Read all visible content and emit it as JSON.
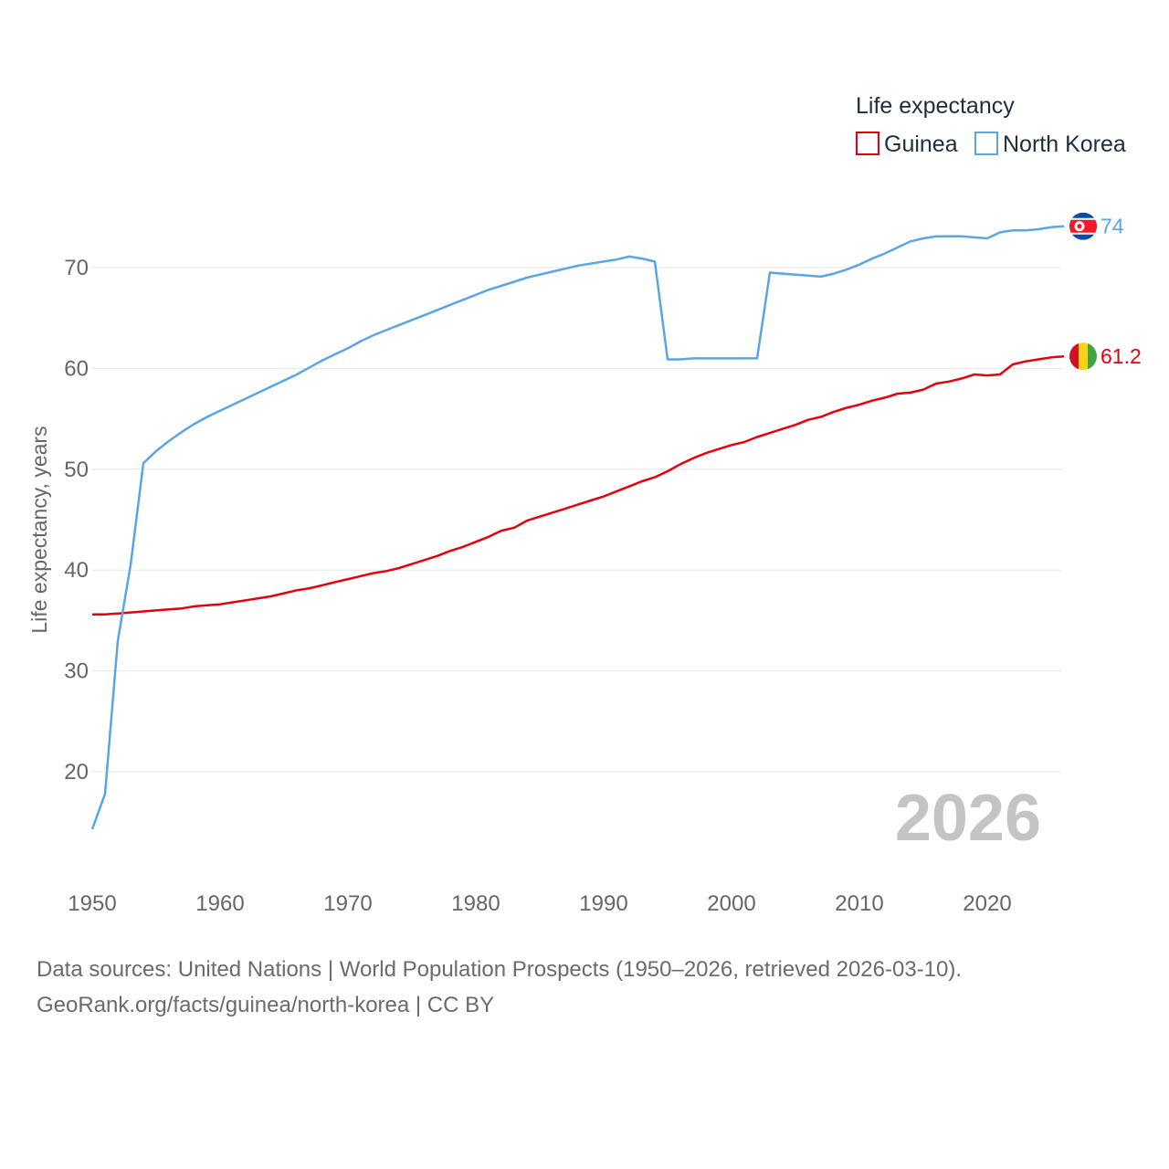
{
  "legend": {
    "title": "Life expectancy",
    "items": [
      {
        "label": "Guinea",
        "color": "#e3000f"
      },
      {
        "label": "North Korea",
        "color": "#5aa5e6"
      }
    ]
  },
  "year_stamp": "2026",
  "source": {
    "line1": "Data sources: United Nations | World Population Prospects (1950–2026, retrieved 2026-03-10).",
    "line2": "GeoRank.org/facts/guinea/north-korea | CC BY"
  },
  "chart_data": {
    "type": "line",
    "title": "Life expectancy",
    "xlabel": "",
    "ylabel": "Life expectancy, years",
    "xlim": [
      1950,
      2026
    ],
    "ylim": [
      12,
      76
    ],
    "xticks": [
      1950,
      1960,
      1970,
      1980,
      1990,
      2000,
      2010,
      2020
    ],
    "yticks": [
      20,
      30,
      40,
      50,
      60,
      70
    ],
    "grid": true,
    "legend_position": "top-right",
    "series": [
      {
        "name": "Guinea",
        "color": "#e3000f",
        "end_label": "61.2",
        "flag": "guinea",
        "points": [
          [
            1950,
            35.6
          ],
          [
            1951,
            35.6
          ],
          [
            1952,
            35.7
          ],
          [
            1953,
            35.8
          ],
          [
            1954,
            35.9
          ],
          [
            1955,
            36.0
          ],
          [
            1956,
            36.1
          ],
          [
            1957,
            36.2
          ],
          [
            1958,
            36.4
          ],
          [
            1959,
            36.5
          ],
          [
            1960,
            36.6
          ],
          [
            1961,
            36.8
          ],
          [
            1962,
            37.0
          ],
          [
            1963,
            37.2
          ],
          [
            1964,
            37.4
          ],
          [
            1965,
            37.7
          ],
          [
            1966,
            38.0
          ],
          [
            1967,
            38.2
          ],
          [
            1968,
            38.5
          ],
          [
            1969,
            38.8
          ],
          [
            1970,
            39.1
          ],
          [
            1971,
            39.4
          ],
          [
            1972,
            39.7
          ],
          [
            1973,
            39.9
          ],
          [
            1974,
            40.2
          ],
          [
            1975,
            40.6
          ],
          [
            1976,
            41.0
          ],
          [
            1977,
            41.4
          ],
          [
            1978,
            41.9
          ],
          [
            1979,
            42.3
          ],
          [
            1980,
            42.8
          ],
          [
            1981,
            43.3
          ],
          [
            1982,
            43.9
          ],
          [
            1983,
            44.2
          ],
          [
            1984,
            44.9
          ],
          [
            1985,
            45.3
          ],
          [
            1986,
            45.7
          ],
          [
            1987,
            46.1
          ],
          [
            1988,
            46.5
          ],
          [
            1989,
            46.9
          ],
          [
            1990,
            47.3
          ],
          [
            1991,
            47.8
          ],
          [
            1992,
            48.3
          ],
          [
            1993,
            48.8
          ],
          [
            1994,
            49.2
          ],
          [
            1995,
            49.8
          ],
          [
            1996,
            50.5
          ],
          [
            1997,
            51.1
          ],
          [
            1998,
            51.6
          ],
          [
            1999,
            52.0
          ],
          [
            2000,
            52.4
          ],
          [
            2001,
            52.7
          ],
          [
            2002,
            53.2
          ],
          [
            2003,
            53.6
          ],
          [
            2004,
            54.0
          ],
          [
            2005,
            54.4
          ],
          [
            2006,
            54.9
          ],
          [
            2007,
            55.2
          ],
          [
            2008,
            55.7
          ],
          [
            2009,
            56.1
          ],
          [
            2010,
            56.4
          ],
          [
            2011,
            56.8
          ],
          [
            2012,
            57.1
          ],
          [
            2013,
            57.5
          ],
          [
            2014,
            57.6
          ],
          [
            2015,
            57.9
          ],
          [
            2016,
            58.5
          ],
          [
            2017,
            58.7
          ],
          [
            2018,
            59.0
          ],
          [
            2019,
            59.4
          ],
          [
            2020,
            59.3
          ],
          [
            2021,
            59.4
          ],
          [
            2022,
            60.4
          ],
          [
            2023,
            60.7
          ],
          [
            2024,
            60.9
          ],
          [
            2025,
            61.1
          ],
          [
            2026,
            61.2
          ]
        ]
      },
      {
        "name": "North Korea",
        "color": "#5aa5e6",
        "end_label": "74",
        "flag": "north-korea",
        "points": [
          [
            1950,
            14.3
          ],
          [
            1951,
            17.8
          ],
          [
            1952,
            33.0
          ],
          [
            1953,
            40.5
          ],
          [
            1954,
            50.6
          ],
          [
            1955,
            51.8
          ],
          [
            1956,
            52.8
          ],
          [
            1957,
            53.7
          ],
          [
            1958,
            54.5
          ],
          [
            1959,
            55.2
          ],
          [
            1960,
            55.8
          ],
          [
            1961,
            56.4
          ],
          [
            1962,
            57.0
          ],
          [
            1963,
            57.6
          ],
          [
            1964,
            58.2
          ],
          [
            1965,
            58.8
          ],
          [
            1966,
            59.4
          ],
          [
            1967,
            60.1
          ],
          [
            1968,
            60.8
          ],
          [
            1969,
            61.4
          ],
          [
            1970,
            62.0
          ],
          [
            1971,
            62.7
          ],
          [
            1972,
            63.3
          ],
          [
            1973,
            63.8
          ],
          [
            1974,
            64.3
          ],
          [
            1975,
            64.8
          ],
          [
            1976,
            65.3
          ],
          [
            1977,
            65.8
          ],
          [
            1978,
            66.3
          ],
          [
            1979,
            66.8
          ],
          [
            1980,
            67.3
          ],
          [
            1981,
            67.8
          ],
          [
            1982,
            68.2
          ],
          [
            1983,
            68.6
          ],
          [
            1984,
            69.0
          ],
          [
            1985,
            69.3
          ],
          [
            1986,
            69.6
          ],
          [
            1987,
            69.9
          ],
          [
            1988,
            70.2
          ],
          [
            1989,
            70.4
          ],
          [
            1990,
            70.6
          ],
          [
            1991,
            70.8
          ],
          [
            1992,
            71.1
          ],
          [
            1993,
            70.9
          ],
          [
            1994,
            70.6
          ],
          [
            1995,
            60.9
          ],
          [
            1996,
            60.9
          ],
          [
            1997,
            61.0
          ],
          [
            1998,
            61.0
          ],
          [
            1999,
            61.0
          ],
          [
            2000,
            61.0
          ],
          [
            2001,
            61.0
          ],
          [
            2002,
            61.0
          ],
          [
            2003,
            69.5
          ],
          [
            2004,
            69.4
          ],
          [
            2005,
            69.3
          ],
          [
            2006,
            69.2
          ],
          [
            2007,
            69.1
          ],
          [
            2008,
            69.4
          ],
          [
            2009,
            69.8
          ],
          [
            2010,
            70.3
          ],
          [
            2011,
            70.9
          ],
          [
            2012,
            71.4
          ],
          [
            2013,
            72.0
          ],
          [
            2014,
            72.6
          ],
          [
            2015,
            72.9
          ],
          [
            2016,
            73.1
          ],
          [
            2017,
            73.1
          ],
          [
            2018,
            73.1
          ],
          [
            2019,
            73.0
          ],
          [
            2020,
            72.9
          ],
          [
            2021,
            73.5
          ],
          [
            2022,
            73.7
          ],
          [
            2023,
            73.7
          ],
          [
            2024,
            73.8
          ],
          [
            2025,
            74.0
          ],
          [
            2026,
            74.1
          ]
        ]
      }
    ]
  }
}
